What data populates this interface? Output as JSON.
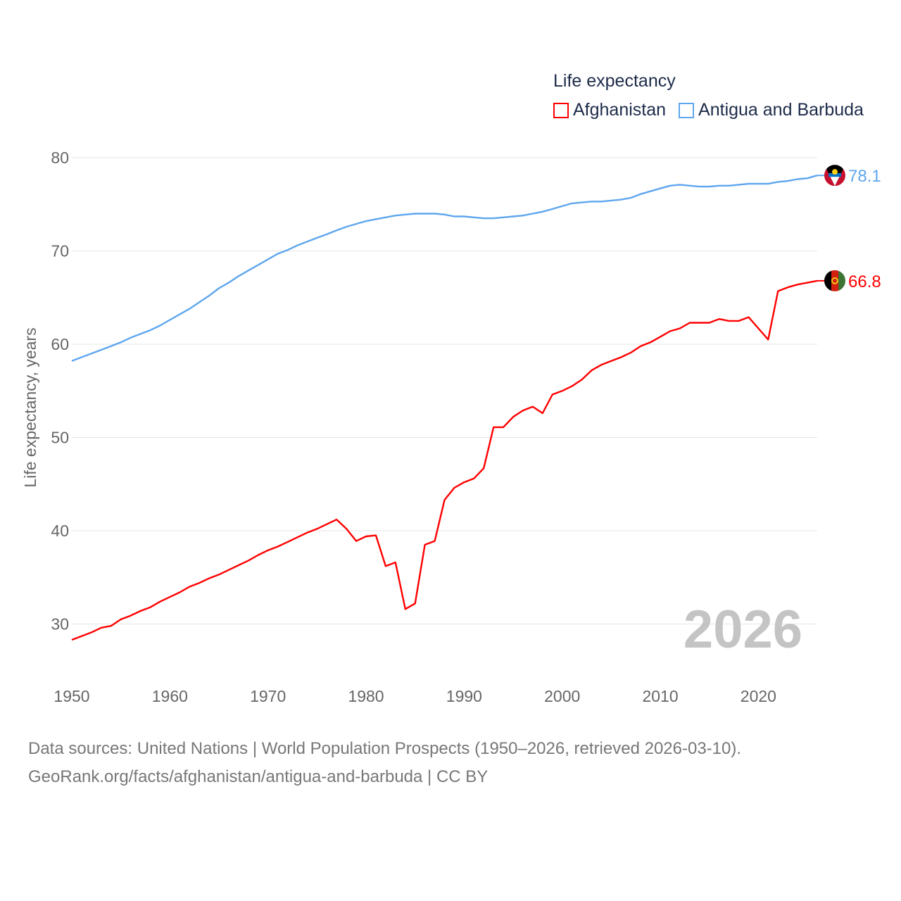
{
  "chart_data": {
    "type": "line",
    "title": "Life expectancy",
    "ylabel": "Life expectancy, years",
    "xlabel": "",
    "xlim": [
      1950,
      2026
    ],
    "ylim": [
      25,
      80
    ],
    "x_ticks": [
      "1950",
      "1960",
      "1970",
      "1980",
      "1990",
      "2000",
      "2010",
      "2020"
    ],
    "y_ticks": [
      "30",
      "40",
      "50",
      "60",
      "70",
      "80"
    ],
    "grid": true,
    "legend_position": "top-right",
    "year_label": "2026",
    "x": [
      1950,
      1951,
      1952,
      1953,
      1954,
      1955,
      1956,
      1957,
      1958,
      1959,
      1960,
      1961,
      1962,
      1963,
      1964,
      1965,
      1966,
      1967,
      1968,
      1969,
      1970,
      1971,
      1972,
      1973,
      1974,
      1975,
      1976,
      1977,
      1978,
      1979,
      1980,
      1981,
      1982,
      1983,
      1984,
      1985,
      1986,
      1987,
      1988,
      1989,
      1990,
      1991,
      1992,
      1993,
      1994,
      1995,
      1996,
      1997,
      1998,
      1999,
      2000,
      2001,
      2002,
      2003,
      2004,
      2005,
      2006,
      2007,
      2008,
      2009,
      2010,
      2011,
      2012,
      2013,
      2014,
      2015,
      2016,
      2017,
      2018,
      2019,
      2020,
      2021,
      2022,
      2023,
      2024,
      2025,
      2026
    ],
    "series": [
      {
        "name": "Afghanistan",
        "color": "#ff0000",
        "end_label": "66.8",
        "flag": "afghanistan-flag",
        "values": [
          28.3,
          28.7,
          29.1,
          29.6,
          29.8,
          30.5,
          30.9,
          31.4,
          31.8,
          32.4,
          32.9,
          33.4,
          34.0,
          34.4,
          34.9,
          35.3,
          35.8,
          36.3,
          36.8,
          37.4,
          37.9,
          38.3,
          38.8,
          39.3,
          39.8,
          40.2,
          40.7,
          41.2,
          40.2,
          38.9,
          39.4,
          39.5,
          36.2,
          36.6,
          31.6,
          32.2,
          38.5,
          38.9,
          43.3,
          44.6,
          45.2,
          45.6,
          46.7,
          51.1,
          51.1,
          52.2,
          52.9,
          53.3,
          52.6,
          54.6,
          55.0,
          55.5,
          56.2,
          57.2,
          57.8,
          58.2,
          58.6,
          59.1,
          59.8,
          60.2,
          60.8,
          61.4,
          61.7,
          62.3,
          62.3,
          62.3,
          62.7,
          62.5,
          62.5,
          62.9,
          61.7,
          60.5,
          65.7,
          66.1,
          66.4,
          66.6,
          66.8
        ]
      },
      {
        "name": "Antigua and Barbuda",
        "color": "#5ea6ee",
        "end_label": "78.1",
        "flag": "antigua-flag",
        "values": [
          58.2,
          58.6,
          59.0,
          59.4,
          59.8,
          60.2,
          60.7,
          61.1,
          61.5,
          62.0,
          62.6,
          63.2,
          63.8,
          64.5,
          65.2,
          66.0,
          66.6,
          67.3,
          67.9,
          68.5,
          69.1,
          69.7,
          70.1,
          70.6,
          71.0,
          71.4,
          71.8,
          72.2,
          72.6,
          72.9,
          73.2,
          73.4,
          73.6,
          73.8,
          73.9,
          74.0,
          74.0,
          74.0,
          73.9,
          73.7,
          73.7,
          73.6,
          73.5,
          73.5,
          73.6,
          73.7,
          73.8,
          74.0,
          74.2,
          74.5,
          74.8,
          75.1,
          75.2,
          75.3,
          75.3,
          75.4,
          75.5,
          75.7,
          76.1,
          76.4,
          76.7,
          77.0,
          77.1,
          77.0,
          76.9,
          76.9,
          77.0,
          77.0,
          77.1,
          77.2,
          77.2,
          77.2,
          77.4,
          77.5,
          77.7,
          77.8,
          78.1
        ]
      }
    ]
  },
  "source": {
    "line1": "Data sources: United Nations | World Population Prospects (1950–2026, retrieved 2026-03-10).",
    "line2": "GeoRank.org/facts/afghanistan/antigua-and-barbuda | CC BY"
  }
}
